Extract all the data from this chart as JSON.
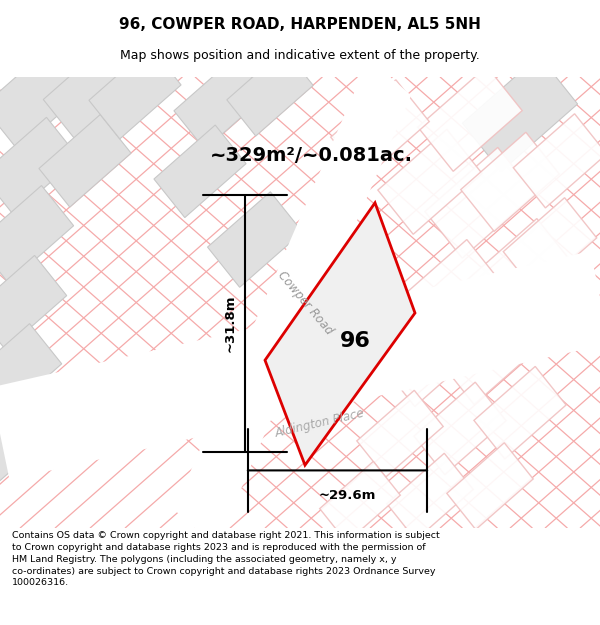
{
  "title": "96, COWPER ROAD, HARPENDEN, AL5 5NH",
  "subtitle": "Map shows position and indicative extent of the property.",
  "area_text": "~329m²/~0.081ac.",
  "width_label": "~29.6m",
  "height_label": "~31.8m",
  "property_number": "96",
  "road_label_1": "Cowper Road",
  "road_label_2": "Aldington Place",
  "footer_text": "Contains OS data © Crown copyright and database right 2021. This information is subject to Crown copyright and database rights 2023 and is reproduced with the permission of HM Land Registry. The polygons (including the associated geometry, namely x, y co-ordinates) are subject to Crown copyright and database rights 2023 Ordnance Survey 100026316.",
  "bg_color": "#ffffff",
  "map_bg": "#ffffff",
  "property_fill": "#f0f0f0",
  "property_edge": "#dd0000",
  "pink_line_color": "#f5aaaa",
  "building_fill": "#e0e0e0",
  "building_edge": "#c8c8c8",
  "building_outline_only_color": "#f0c0c0",
  "footer_bg": "#ffffff",
  "title_fontsize": 11,
  "subtitle_fontsize": 9
}
